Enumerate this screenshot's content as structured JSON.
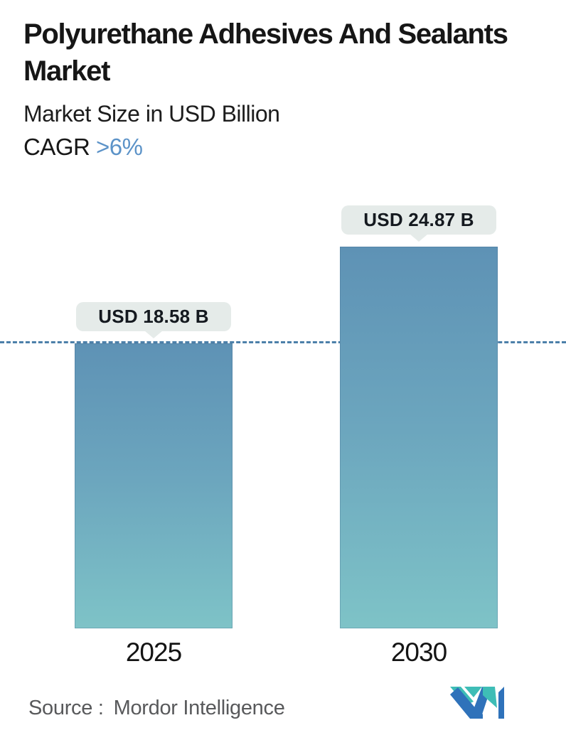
{
  "header": {
    "title": "Polyurethane Adhesives And Sealants Market",
    "subtitle": "Market Size in USD Billion",
    "cagr_label": "CAGR",
    "cagr_value": ">6%"
  },
  "chart_data": {
    "type": "bar",
    "title": "Polyurethane Adhesives And Sealants Market",
    "ylabel": "Market Size in USD Billion",
    "unit": "USD Billion",
    "categories": [
      "2025",
      "2030"
    ],
    "values": [
      18.58,
      24.87
    ],
    "value_labels": [
      "USD 18.58 B",
      "USD 24.87 B"
    ],
    "ylim": [
      0,
      24.87
    ],
    "grid": "off",
    "legend": "none",
    "annotations": {
      "cagr": ">6%",
      "reference_line_value": 18.58,
      "reference_line_style": "dashed"
    },
    "colors": {
      "bar_gradient_top": "#5E92B5",
      "bar_gradient_mid": "#6CA6BE",
      "bar_gradient_bottom": "#7EC3C7",
      "dashed_line": "#4C80A9",
      "label_pill_bg": "#E5EBE9",
      "label_text": "#14191F",
      "cagr_accent": "#5C93C8"
    }
  },
  "footer": {
    "source_label": "Source :",
    "source_value": "Mordor Intelligence",
    "logo": {
      "name": "mordor-intelligence-logo",
      "teal": "#3EBDB6",
      "blue": "#2F72BA"
    }
  }
}
